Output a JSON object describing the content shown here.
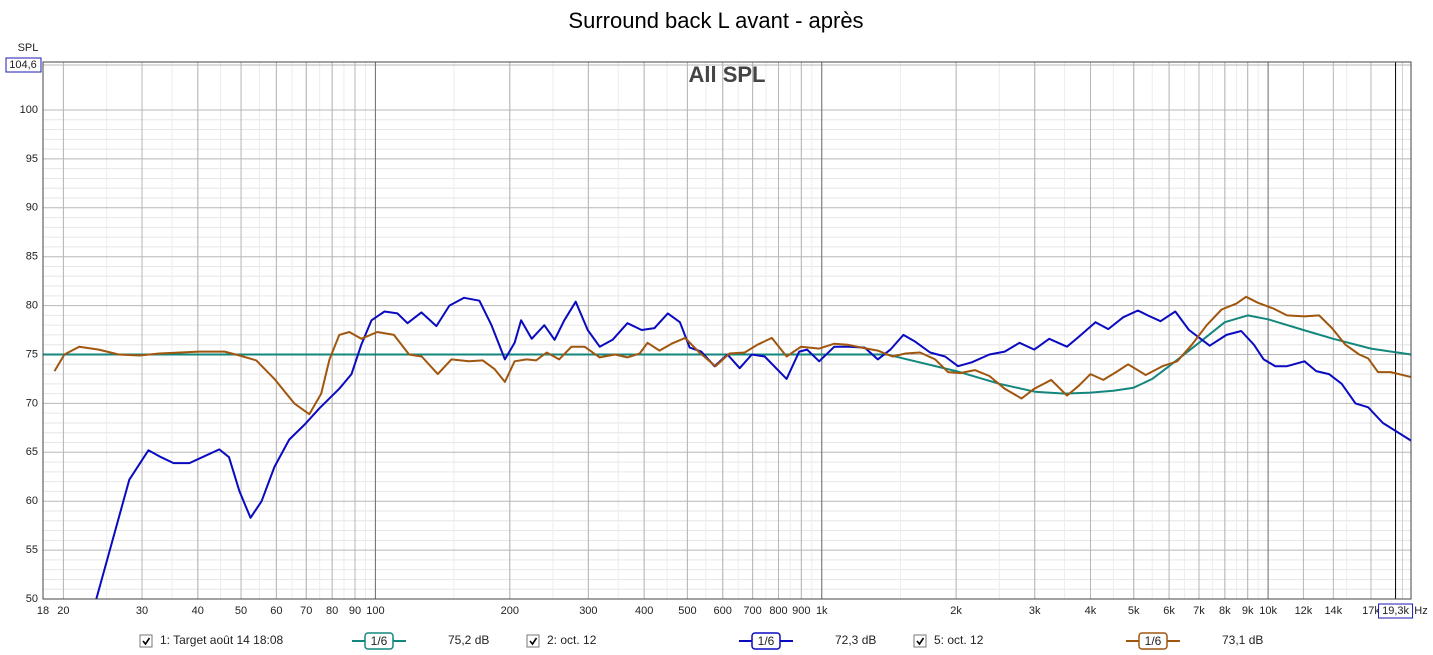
{
  "chart_data": {
    "type": "line",
    "title": "Surround back L avant - après",
    "annotation": "All SPL",
    "x_label": "Hz",
    "y_label": "SPL",
    "xscale": "log",
    "grid": true,
    "xlim": [
      18,
      20900
    ],
    "ylim": [
      50,
      104.6
    ],
    "xticks": [
      18,
      20,
      30,
      40,
      50,
      60,
      70,
      80,
      90,
      100,
      200,
      300,
      400,
      500,
      600,
      700,
      800,
      900,
      {
        "value": 1000,
        "label": "1k"
      },
      {
        "value": 2000,
        "label": "2k"
      },
      {
        "value": 3000,
        "label": "3k"
      },
      {
        "value": 4000,
        "label": "4k"
      },
      {
        "value": 5000,
        "label": "5k"
      },
      {
        "value": 6000,
        "label": "6k"
      },
      {
        "value": 7000,
        "label": "7k"
      },
      {
        "value": 8000,
        "label": "8k"
      },
      {
        "value": 9000,
        "label": "9k"
      },
      {
        "value": 10000,
        "label": "10k"
      },
      {
        "value": 12000,
        "label": "12k"
      },
      {
        "value": 14000,
        "label": "14k"
      },
      {
        "value": 17000,
        "label": "17k"
      }
    ],
    "yticks": [
      50,
      55,
      60,
      65,
      70,
      75,
      80,
      85,
      90,
      95,
      100,
      {
        "value": 104.6,
        "label": "104,6"
      }
    ],
    "cursor": {
      "value": 19300,
      "label": "19,3k"
    },
    "series": [
      {
        "name": "1: Target août 14 18:08",
        "color": "#13877e",
        "smoothing": "1/6",
        "level": "75,2 dB",
        "x": [
          18,
          1400,
          2000,
          2500,
          3000,
          3500,
          4000,
          4500,
          5000,
          5500,
          6000,
          7000,
          8000,
          9000,
          10000,
          12000,
          14000,
          17000,
          20900
        ],
        "values": [
          75,
          75,
          73.3,
          72,
          71.2,
          71,
          71.1,
          71.3,
          71.6,
          72.5,
          73.8,
          76.2,
          78.3,
          79,
          78.6,
          77.5,
          76.6,
          75.6,
          75
        ]
      },
      {
        "name": "2: oct. 12",
        "color": "#0a0ac0",
        "smoothing": "1/6",
        "level": "72,3 dB",
        "x": [
          23.7,
          28.1,
          31,
          33.1,
          35.3,
          38.3,
          41.4,
          44.7,
          47,
          49.6,
          52.5,
          55.6,
          59.4,
          64.1,
          69.3,
          74.9,
          83,
          88.4,
          93,
          98,
          104.8,
          112,
          118,
          126.8,
          137,
          146.5,
          158,
          171,
          182,
          195,
          205,
          212,
          224,
          239,
          252,
          265,
          281,
          299,
          318,
          340,
          367,
          395,
          422,
          452,
          481,
          506,
          537,
          575,
          615,
          655,
          697,
          745,
          834,
          890,
          927,
          987,
          1067,
          1154,
          1248,
          1335,
          1425,
          1524,
          1621,
          1749,
          1889,
          2019,
          2168,
          2375,
          2570,
          2774,
          2994,
          3232,
          3544,
          3765,
          4104,
          4385,
          4734,
          5108,
          5373,
          5740,
          6194,
          6649,
          7399,
          8068,
          8706,
          9295,
          9775,
          10376,
          11022,
          12065,
          12818,
          13690,
          14617,
          15698,
          16760,
          18080,
          20900
        ],
        "values": [
          50,
          62.2,
          65.2,
          64.5,
          63.9,
          63.9,
          64.6,
          65.3,
          64.5,
          61,
          58.3,
          60,
          63.5,
          66.3,
          67.8,
          69.5,
          71.5,
          73,
          76,
          78.5,
          79.4,
          79.2,
          78.2,
          79.3,
          77.9,
          80,
          80.8,
          80.5,
          78,
          74.5,
          76.2,
          78.5,
          76.6,
          78,
          76.5,
          78.5,
          80.4,
          77.5,
          75.8,
          76.5,
          78.2,
          77.5,
          77.7,
          79.2,
          78.3,
          75.7,
          75.3,
          73.8,
          75,
          73.6,
          75,
          74.8,
          72.5,
          75.3,
          75.5,
          74.3,
          75.8,
          75.8,
          75.7,
          74.5,
          75.5,
          77,
          76.3,
          75.2,
          74.8,
          73.8,
          74.2,
          75,
          75.3,
          76.2,
          75.5,
          76.6,
          75.8,
          76.8,
          78.3,
          77.6,
          78.8,
          79.5,
          79,
          78.4,
          79.4,
          77.5,
          75.9,
          77,
          77.4,
          76,
          74.5,
          73.8,
          73.8,
          74.3,
          73.3,
          73,
          72,
          70,
          69.6,
          68,
          66.2
        ]
      },
      {
        "name": "5: oct. 12",
        "color": "#a0560e",
        "smoothing": "1/6",
        "level": "73,1 dB",
        "x": [
          19.1,
          20.1,
          21.7,
          24,
          26.6,
          29.6,
          32.8,
          40.3,
          45.9,
          49.6,
          54.1,
          59.4,
          65.8,
          71.1,
          75.6,
          78.9,
          83,
          87.4,
          93,
          101,
          110,
          119,
          127,
          138,
          148,
          162,
          174,
          185,
          195,
          205,
          218,
          229,
          242,
          258,
          275,
          294,
          318,
          344,
          367,
          391,
          407,
          433,
          461,
          494,
          532,
          578,
          621,
          672,
          718,
          773,
          834,
          899,
          987,
          1067,
          1143,
          1228,
          1335,
          1440,
          1540,
          1660,
          1795,
          1918,
          2040,
          2202,
          2375,
          2570,
          2803,
          2994,
          3266,
          3544,
          3765,
          4001,
          4274,
          4565,
          4856,
          5319,
          5797,
          6258,
          6750,
          7286,
          7867,
          8493,
          8927,
          9483,
          10272,
          11022,
          12065,
          13011,
          13901,
          14901,
          15999,
          16760,
          17631,
          18810,
          20900
        ],
        "values": [
          73.3,
          75,
          75.8,
          75.5,
          75,
          74.9,
          75.1,
          75.3,
          75.3,
          74.9,
          74.4,
          72.5,
          70,
          68.9,
          71,
          74.5,
          77,
          77.3,
          76.6,
          77.3,
          77,
          75,
          74.8,
          73,
          74.5,
          74.3,
          74.4,
          73.5,
          72.2,
          74.3,
          74.5,
          74.4,
          75.2,
          74.5,
          75.8,
          75.8,
          74.7,
          75,
          74.7,
          75.1,
          76.2,
          75.4,
          76.1,
          76.7,
          75.2,
          73.8,
          75.1,
          75.2,
          76,
          76.7,
          74.8,
          75.8,
          75.6,
          76.1,
          76,
          75.7,
          75.4,
          74.8,
          75.1,
          75.2,
          74.5,
          73.2,
          73.1,
          73.4,
          72.8,
          71.5,
          70.5,
          71.5,
          72.4,
          70.8,
          71.8,
          73,
          72.4,
          73.2,
          74,
          72.9,
          73.8,
          74.3,
          76,
          78,
          79.6,
          80.2,
          80.9,
          80.3,
          79.7,
          79,
          78.9,
          79,
          77.7,
          76,
          75,
          74.6,
          73.2,
          73.2,
          72.7
        ]
      }
    ]
  }
}
